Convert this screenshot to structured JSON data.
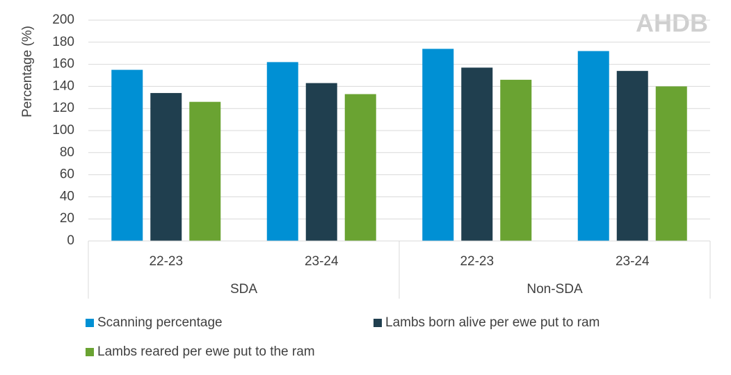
{
  "chart_data": {
    "type": "bar",
    "y_label": "Percentage (%)",
    "logo": "AHDB",
    "groups": [
      {
        "name": "SDA",
        "categories": [
          "22-23",
          "23-24"
        ]
      },
      {
        "name": "Non-SDA",
        "categories": [
          "22-23",
          "23-24"
        ]
      }
    ],
    "series": [
      {
        "name": "Scanning percentage",
        "color": "#0090d4",
        "values": [
          155,
          162,
          174,
          172
        ]
      },
      {
        "name": "Lambs born alive per ewe put to ram",
        "color": "#203f4f",
        "values": [
          134,
          143,
          157,
          154
        ]
      },
      {
        "name": "Lambs reared per ewe put to the ram",
        "color": "#6aa332",
        "values": [
          126,
          133,
          146,
          140
        ]
      }
    ],
    "ylim": [
      0,
      200
    ],
    "yticks": [
      0,
      20,
      40,
      60,
      80,
      100,
      120,
      140,
      160,
      180,
      200
    ],
    "grid": true
  }
}
